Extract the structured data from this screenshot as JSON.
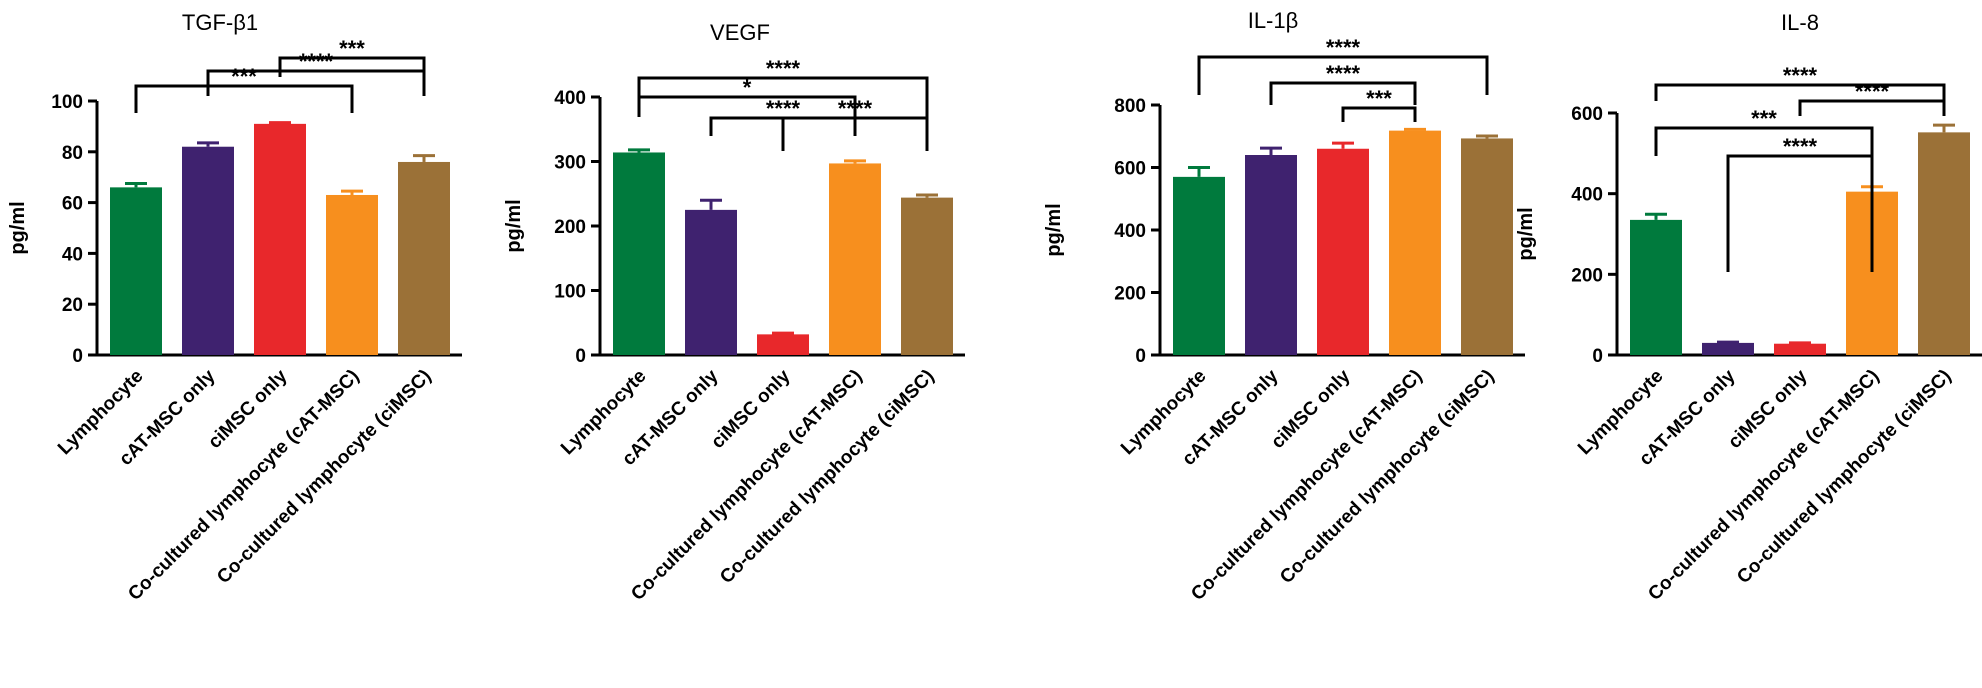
{
  "chart_data": [
    {
      "type": "bar",
      "title": "TGF-β1",
      "ylabel": "pg/ml",
      "xlabel": "",
      "ylim": [
        0,
        100
      ],
      "yticks": [
        0,
        20,
        40,
        60,
        80,
        100
      ],
      "categories": [
        "Lymphocyte",
        "cAT-MSC only",
        "ciMSC only",
        "Co-cultured lymphocyte (cAT-MSC)",
        "Co-cultured lymphocyte (ciMSC)"
      ],
      "values": [
        66,
        82,
        91,
        63,
        76
      ],
      "errors": [
        1.5,
        1.5,
        0.5,
        1.5,
        2.5
      ],
      "colors": [
        "#007a3d",
        "#3f226f",
        "#e8282b",
        "#f78f1e",
        "#9b7137"
      ],
      "significance": [
        {
          "from": 0,
          "to": 3,
          "label": "***"
        },
        {
          "from": 1,
          "to": 4,
          "label": "****"
        },
        {
          "from": 2,
          "to": 4,
          "label": "***"
        }
      ]
    },
    {
      "type": "bar",
      "title": "VEGF",
      "ylabel": "pg/ml",
      "xlabel": "",
      "ylim": [
        0,
        400
      ],
      "yticks": [
        0,
        100,
        200,
        300,
        400
      ],
      "categories": [
        "Lymphocyte",
        "cAT-MSC only",
        "ciMSC only",
        "Co-cultured lymphocyte (cAT-MSC)",
        "Co-cultured lymphocyte (ciMSC)"
      ],
      "values": [
        314,
        225,
        32,
        297,
        244
      ],
      "errors": [
        4,
        15,
        2,
        4,
        4
      ],
      "colors": [
        "#007a3d",
        "#3f226f",
        "#e8282b",
        "#f78f1e",
        "#9b7137"
      ],
      "significance": [
        {
          "from": 0,
          "to": 4,
          "label": "****"
        },
        {
          "from": 0,
          "to": 3,
          "label": "*"
        },
        {
          "from": 1,
          "to": 3,
          "label": "****"
        },
        {
          "from": 2,
          "to": 4,
          "label": "****"
        }
      ]
    },
    {
      "type": "bar",
      "title": "IL-1β",
      "ylabel": "pg/ml",
      "xlabel": "",
      "ylim": [
        0,
        800
      ],
      "yticks": [
        0,
        200,
        400,
        600,
        800
      ],
      "categories": [
        "Lymphocyte",
        "cAT-MSC only",
        "ciMSC only",
        "Co-cultured lymphocyte (cAT-MSC)",
        "Co-cultured lymphocyte (ciMSC)"
      ],
      "values": [
        570,
        640,
        660,
        718,
        693
      ],
      "errors": [
        30,
        22,
        18,
        4,
        8
      ],
      "colors": [
        "#007a3d",
        "#3f226f",
        "#e8282b",
        "#f78f1e",
        "#9b7137"
      ],
      "significance": [
        {
          "from": 0,
          "to": 4,
          "label": "****"
        },
        {
          "from": 1,
          "to": 3,
          "label": "****"
        },
        {
          "from": 2,
          "to": 3,
          "label": "***"
        }
      ]
    },
    {
      "type": "bar",
      "title": "IL-8",
      "ylabel": "pg/ml",
      "xlabel": "",
      "ylim": [
        0,
        600
      ],
      "yticks": [
        0,
        200,
        400,
        600
      ],
      "categories": [
        "Lymphocyte",
        "cAT-MSC only",
        "ciMSC only",
        "Co-cultured lymphocyte (cAT-MSC)",
        "Co-cultured lymphocyte (ciMSC)"
      ],
      "values": [
        335,
        30,
        28,
        405,
        552
      ],
      "errors": [
        14,
        2,
        2,
        12,
        18
      ],
      "colors": [
        "#007a3d",
        "#3f226f",
        "#e8282b",
        "#f78f1e",
        "#9b7137"
      ],
      "significance": [
        {
          "from": 0,
          "to": 4,
          "label": "****"
        },
        {
          "from": 2,
          "to": 4,
          "label": "****"
        },
        {
          "from": 0,
          "to": 3,
          "label": "***"
        },
        {
          "from": 1,
          "to": 3,
          "label": "****"
        }
      ]
    }
  ]
}
